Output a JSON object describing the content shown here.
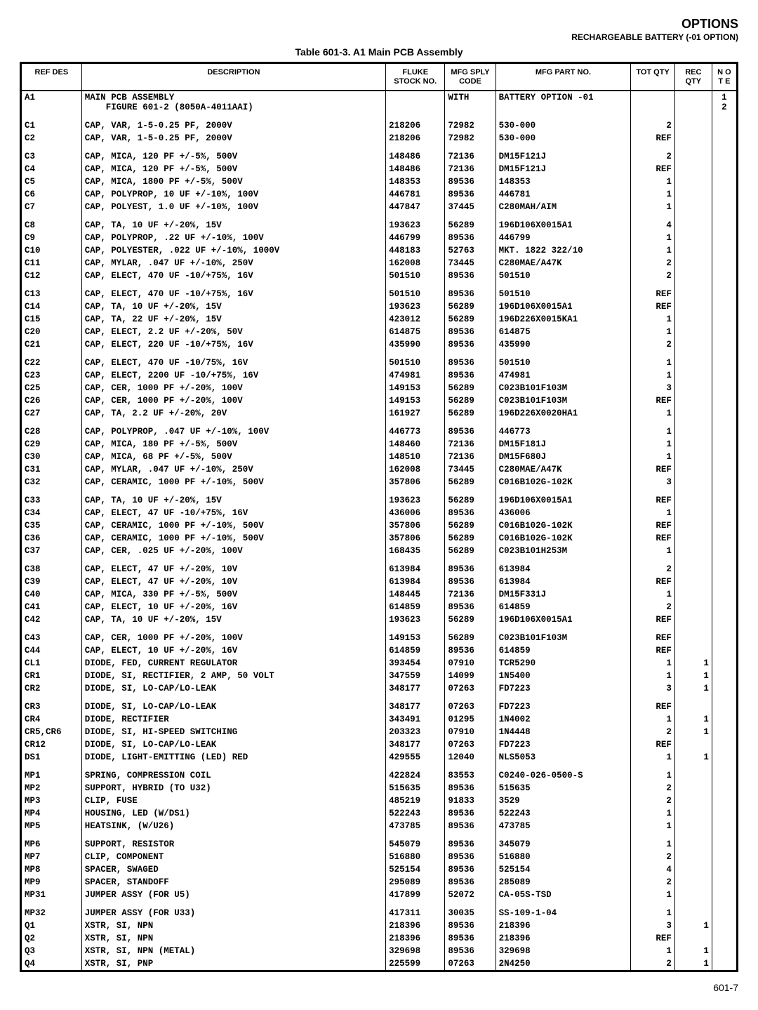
{
  "header": {
    "options": "OPTIONS",
    "subtitle": "RECHARGEABLE BATTERY (-01 OPTION)",
    "table_title": "Table 601-3. A1 Main PCB Assembly"
  },
  "columns": {
    "ref": "REF\nDES",
    "desc": "DESCRIPTION",
    "fluke": "FLUKE\nSTOCK\nNO.",
    "sply": "MFG\nSPLY\nCODE",
    "part": "MFG PART NO.",
    "tot": "TOT\nQTY",
    "rec": "REC\nQTY",
    "note": "N\nO\nT\nE"
  },
  "groups": [
    {
      "rows": [
        {
          "ref": "A1",
          "desc": "MAIN PCB ASSEMBLY\n    FIGURE 601-2 (8050A-4011AAI)",
          "fluke": "",
          "sply": "WITH",
          "part": "BATTERY OPTION -01",
          "tot": "",
          "rec": "",
          "note": "1\n2"
        }
      ]
    },
    {
      "rows": [
        {
          "ref": "C1",
          "desc": "CAP, VAR, 1-5-0.25 PF, 2000V",
          "fluke": "218206",
          "sply": "72982",
          "part": "530-000",
          "tot": "2",
          "rec": "",
          "note": ""
        },
        {
          "ref": "C2",
          "desc": "CAP, VAR, 1-5-0.25 PF, 2000V",
          "fluke": "218206",
          "sply": "72982",
          "part": "530-000",
          "tot": "REF",
          "rec": "",
          "note": ""
        }
      ]
    },
    {
      "rows": [
        {
          "ref": "C3",
          "desc": "CAP, MICA, 120 PF +/-5%, 500V",
          "fluke": "148486",
          "sply": "72136",
          "part": "DM15F121J",
          "tot": "2",
          "rec": "",
          "note": ""
        },
        {
          "ref": "C4",
          "desc": "CAP, MICA, 120 PF +/-5%, 500V",
          "fluke": "148486",
          "sply": "72136",
          "part": "DM15F121J",
          "tot": "REF",
          "rec": "",
          "note": ""
        },
        {
          "ref": "C5",
          "desc": "CAP, MICA, 1800 PF +/-5%, 500V",
          "fluke": "148353",
          "sply": "89536",
          "part": "148353",
          "tot": "1",
          "rec": "",
          "note": ""
        },
        {
          "ref": "C6",
          "desc": "CAP, POLYPROP, 10 UF +/-10%, 100V",
          "fluke": "446781",
          "sply": "89536",
          "part": "446781",
          "tot": "1",
          "rec": "",
          "note": ""
        },
        {
          "ref": "C7",
          "desc": "CAP, POLYEST, 1.0 UF +/-10%, 100V",
          "fluke": "447847",
          "sply": "37445",
          "part": "C280MAH/AIM",
          "tot": "1",
          "rec": "",
          "note": ""
        }
      ]
    },
    {
      "rows": [
        {
          "ref": "C8",
          "desc": "CAP, TA, 10 UF +/-20%, 15V",
          "fluke": "193623",
          "sply": "56289",
          "part": "196D106X0015A1",
          "tot": "4",
          "rec": "",
          "note": ""
        },
        {
          "ref": "C9",
          "desc": "CAP, POLYPROP, .22 UF +/-10%, 100V",
          "fluke": "446799",
          "sply": "89536",
          "part": "446799",
          "tot": "1",
          "rec": "",
          "note": ""
        },
        {
          "ref": "C10",
          "desc": "CAP, POLYESTER, .022 UF +/-10%, 1000V",
          "fluke": "448183",
          "sply": "52763",
          "part": "MKT. 1822 322/10",
          "tot": "1",
          "rec": "",
          "note": ""
        },
        {
          "ref": "C11",
          "desc": "CAP, MYLAR, .047 UF +/-10%, 250V",
          "fluke": "162008",
          "sply": "73445",
          "part": "C280MAE/A47K",
          "tot": "2",
          "rec": "",
          "note": ""
        },
        {
          "ref": "C12",
          "desc": "CAP, ELECT, 470 UF -10/+75%, 16V",
          "fluke": "501510",
          "sply": "89536",
          "part": "501510",
          "tot": "2",
          "rec": "",
          "note": ""
        }
      ]
    },
    {
      "rows": [
        {
          "ref": "C13",
          "desc": "CAP, ELECT, 470 UF -10/+75%, 16V",
          "fluke": "501510",
          "sply": "89536",
          "part": "501510",
          "tot": "REF",
          "rec": "",
          "note": ""
        },
        {
          "ref": "C14",
          "desc": "CAP, TA, 10 UF +/-20%, 15V",
          "fluke": "193623",
          "sply": "56289",
          "part": "196D106X0015A1",
          "tot": "REF",
          "rec": "",
          "note": ""
        },
        {
          "ref": "C15",
          "desc": "CAP, TA, 22 UF +/-20%, 15V",
          "fluke": "423012",
          "sply": "56289",
          "part": "196D226X0015KA1",
          "tot": "1",
          "rec": "",
          "note": ""
        },
        {
          "ref": "C20",
          "desc": "CAP, ELECT, 2.2 UF +/-20%, 50V",
          "fluke": "614875",
          "sply": "89536",
          "part": "614875",
          "tot": "1",
          "rec": "",
          "note": ""
        },
        {
          "ref": "C21",
          "desc": "CAP, ELECT, 220 UF -10/+75%, 16V",
          "fluke": "435990",
          "sply": "89536",
          "part": "435990",
          "tot": "2",
          "rec": "",
          "note": ""
        }
      ]
    },
    {
      "rows": [
        {
          "ref": "C22",
          "desc": "CAP, ELECT, 470 UF -10/75%, 16V",
          "fluke": "501510",
          "sply": "89536",
          "part": "501510",
          "tot": "1",
          "rec": "",
          "note": ""
        },
        {
          "ref": "C23",
          "desc": "CAP, ELECT, 2200 UF -10/+75%, 16V",
          "fluke": "474981",
          "sply": "89536",
          "part": "474981",
          "tot": "1",
          "rec": "",
          "note": ""
        },
        {
          "ref": "C25",
          "desc": "CAP, CER, 1000 PF +/-20%, 100V",
          "fluke": "149153",
          "sply": "56289",
          "part": "C023B101F103M",
          "tot": "3",
          "rec": "",
          "note": ""
        },
        {
          "ref": "C26",
          "desc": "CAP, CER, 1000 PF +/-20%, 100V",
          "fluke": "149153",
          "sply": "56289",
          "part": "C023B101F103M",
          "tot": "REF",
          "rec": "",
          "note": ""
        },
        {
          "ref": "C27",
          "desc": "CAP, TA, 2.2 UF +/-20%, 20V",
          "fluke": "161927",
          "sply": "56289",
          "part": "196D226X0020HA1",
          "tot": "1",
          "rec": "",
          "note": ""
        }
      ]
    },
    {
      "rows": [
        {
          "ref": "C28",
          "desc": "CAP, POLYPROP, .047 UF +/-10%, 100V",
          "fluke": "446773",
          "sply": "89536",
          "part": "446773",
          "tot": "1",
          "rec": "",
          "note": ""
        },
        {
          "ref": "C29",
          "desc": "CAP, MICA, 180 PF +/-5%, 500V",
          "fluke": "148460",
          "sply": "72136",
          "part": "DM15F181J",
          "tot": "1",
          "rec": "",
          "note": ""
        },
        {
          "ref": "C30",
          "desc": "CAP, MICA, 68 PF +/-5%, 500V",
          "fluke": "148510",
          "sply": "72136",
          "part": "DM15F680J",
          "tot": "1",
          "rec": "",
          "note": ""
        },
        {
          "ref": "C31",
          "desc": "CAP, MYLAR, .047 UF +/-10%, 250V",
          "fluke": "162008",
          "sply": "73445",
          "part": "C280MAE/A47K",
          "tot": "REF",
          "rec": "",
          "note": ""
        },
        {
          "ref": "C32",
          "desc": "CAP, CERAMIC, 1000 PF +/-10%, 500V",
          "fluke": "357806",
          "sply": "56289",
          "part": "C016B102G-102K",
          "tot": "3",
          "rec": "",
          "note": ""
        }
      ]
    },
    {
      "rows": [
        {
          "ref": "C33",
          "desc": "CAP, TA, 10 UF +/-20%, 15V",
          "fluke": "193623",
          "sply": "56289",
          "part": "196D106X0015A1",
          "tot": "REF",
          "rec": "",
          "note": ""
        },
        {
          "ref": "C34",
          "desc": "CAP, ELECT, 47 UF -10/+75%, 16V",
          "fluke": "436006",
          "sply": "89536",
          "part": "436006",
          "tot": "1",
          "rec": "",
          "note": ""
        },
        {
          "ref": "C35",
          "desc": "CAP, CERAMIC, 1000 PF +/-10%, 500V",
          "fluke": "357806",
          "sply": "56289",
          "part": "C016B102G-102K",
          "tot": "REF",
          "rec": "",
          "note": ""
        },
        {
          "ref": "C36",
          "desc": "CAP, CERAMIC, 1000 PF +/-10%, 500V",
          "fluke": "357806",
          "sply": "56289",
          "part": "C016B102G-102K",
          "tot": "REF",
          "rec": "",
          "note": ""
        },
        {
          "ref": "C37",
          "desc": "CAP, CER, .025 UF +/-20%, 100V",
          "fluke": "168435",
          "sply": "56289",
          "part": "C023B101H253M",
          "tot": "1",
          "rec": "",
          "note": ""
        }
      ]
    },
    {
      "rows": [
        {
          "ref": "C38",
          "desc": "CAP, ELECT, 47 UF +/-20%, 10V",
          "fluke": "613984",
          "sply": "89536",
          "part": "613984",
          "tot": "2",
          "rec": "",
          "note": ""
        },
        {
          "ref": "C39",
          "desc": "CAP, ELECT, 47 UF +/-20%, 10V",
          "fluke": "613984",
          "sply": "89536",
          "part": "613984",
          "tot": "REF",
          "rec": "",
          "note": ""
        },
        {
          "ref": "C40",
          "desc": "CAP, MICA, 330 PF +/-5%, 500V",
          "fluke": "148445",
          "sply": "72136",
          "part": "DM15F331J",
          "tot": "1",
          "rec": "",
          "note": ""
        },
        {
          "ref": "C41",
          "desc": "CAP, ELECT, 10 UF +/-20%, 16V",
          "fluke": "614859",
          "sply": "89536",
          "part": "614859",
          "tot": "2",
          "rec": "",
          "note": ""
        },
        {
          "ref": "C42",
          "desc": "CAP, TA, 10 UF +/-20%, 15V",
          "fluke": "193623",
          "sply": "56289",
          "part": "196D106X0015A1",
          "tot": "REF",
          "rec": "",
          "note": ""
        }
      ]
    },
    {
      "rows": [
        {
          "ref": "C43",
          "desc": "CAP, CER, 1000 PF +/-20%, 100V",
          "fluke": "149153",
          "sply": "56289",
          "part": "C023B101F103M",
          "tot": "REF",
          "rec": "",
          "note": ""
        },
        {
          "ref": "C44",
          "desc": "CAP, ELECT, 10 UF +/-20%, 16V",
          "fluke": "614859",
          "sply": "89536",
          "part": "614859",
          "tot": "REF",
          "rec": "",
          "note": ""
        },
        {
          "ref": "CL1",
          "desc": "DIODE, FED, CURRENT REGULATOR",
          "fluke": "393454",
          "sply": "07910",
          "part": "TCR5290",
          "tot": "1",
          "rec": "1",
          "note": ""
        },
        {
          "ref": "CR1",
          "desc": "DIODE, SI, RECTIFIER, 2 AMP, 50 VOLT",
          "fluke": "347559",
          "sply": "14099",
          "part": "1N5400",
          "tot": "1",
          "rec": "1",
          "note": ""
        },
        {
          "ref": "CR2",
          "desc": "DIODE, SI, LO-CAP/LO-LEAK",
          "fluke": "348177",
          "sply": "07263",
          "part": "FD7223",
          "tot": "3",
          "rec": "1",
          "note": ""
        }
      ]
    },
    {
      "rows": [
        {
          "ref": "CR3",
          "desc": "DIODE, SI, LO-CAP/LO-LEAK",
          "fluke": "348177",
          "sply": "07263",
          "part": "FD7223",
          "tot": "REF",
          "rec": "",
          "note": ""
        },
        {
          "ref": "CR4",
          "desc": "DIODE, RECTIFIER",
          "fluke": "343491",
          "sply": "01295",
          "part": "1N4002",
          "tot": "1",
          "rec": "1",
          "note": ""
        },
        {
          "ref": "CR5,CR6",
          "desc": "DIODE, SI, HI-SPEED SWITCHING",
          "fluke": "203323",
          "sply": "07910",
          "part": "1N4448",
          "tot": "2",
          "rec": "1",
          "note": ""
        },
        {
          "ref": "CR12",
          "desc": "DIODE, SI, LO-CAP/LO-LEAK",
          "fluke": "348177",
          "sply": "07263",
          "part": "FD7223",
          "tot": "REF",
          "rec": "",
          "note": ""
        },
        {
          "ref": "DS1",
          "desc": "DIODE, LIGHT-EMITTING (LED) RED",
          "fluke": "429555",
          "sply": "12040",
          "part": "NLS5053",
          "tot": "1",
          "rec": "1",
          "note": ""
        }
      ]
    },
    {
      "rows": [
        {
          "ref": "MP1",
          "desc": "SPRING, COMPRESSION COIL",
          "fluke": "422824",
          "sply": "83553",
          "part": "C0240-026-0500-S",
          "tot": "1",
          "rec": "",
          "note": ""
        },
        {
          "ref": "MP2",
          "desc": "SUPPORT, HYBRID (TO U32)",
          "fluke": "515635",
          "sply": "89536",
          "part": "515635",
          "tot": "2",
          "rec": "",
          "note": ""
        },
        {
          "ref": "MP3",
          "desc": "CLIP, FUSE",
          "fluke": "485219",
          "sply": "91833",
          "part": "3529",
          "tot": "2",
          "rec": "",
          "note": ""
        },
        {
          "ref": "MP4",
          "desc": "HOUSING, LED (W/DS1)",
          "fluke": "522243",
          "sply": "89536",
          "part": "522243",
          "tot": "1",
          "rec": "",
          "note": ""
        },
        {
          "ref": "MP5",
          "desc": "HEATSINK, (W/U26)",
          "fluke": "473785",
          "sply": "89536",
          "part": "473785",
          "tot": "1",
          "rec": "",
          "note": ""
        }
      ]
    },
    {
      "rows": [
        {
          "ref": "MP6",
          "desc": "SUPPORT, RESISTOR",
          "fluke": "545079",
          "sply": "89536",
          "part": "345079",
          "tot": "1",
          "rec": "",
          "note": ""
        },
        {
          "ref": "MP7",
          "desc": "CLIP, COMPONENT",
          "fluke": "516880",
          "sply": "89536",
          "part": "516880",
          "tot": "2",
          "rec": "",
          "note": ""
        },
        {
          "ref": "MP8",
          "desc": "SPACER, SWAGED",
          "fluke": "525154",
          "sply": "89536",
          "part": "525154",
          "tot": "4",
          "rec": "",
          "note": ""
        },
        {
          "ref": "MP9",
          "desc": "SPACER, STANDOFF",
          "fluke": "295089",
          "sply": "89536",
          "part": "285089",
          "tot": "2",
          "rec": "",
          "note": ""
        },
        {
          "ref": "MP31",
          "desc": "JUMPER ASSY (FOR U5)",
          "fluke": "417899",
          "sply": "52072",
          "part": "CA-05S-TSD",
          "tot": "1",
          "rec": "",
          "note": ""
        }
      ]
    },
    {
      "rows": [
        {
          "ref": "MP32",
          "desc": "JUMPER ASSY (FOR U33)",
          "fluke": "417311",
          "sply": "30035",
          "part": "SS-109-1-04",
          "tot": "1",
          "rec": "",
          "note": ""
        },
        {
          "ref": "Q1",
          "desc": "XSTR, SI, NPN",
          "fluke": "218396",
          "sply": "89536",
          "part": "218396",
          "tot": "3",
          "rec": "1",
          "note": ""
        },
        {
          "ref": "Q2",
          "desc": "XSTR, SI, NPN",
          "fluke": "218396",
          "sply": "89536",
          "part": "218396",
          "tot": "REF",
          "rec": "",
          "note": ""
        },
        {
          "ref": "Q3",
          "desc": "XSTR, SI, NPN (METAL)",
          "fluke": "329698",
          "sply": "89536",
          "part": "329698",
          "tot": "1",
          "rec": "1",
          "note": ""
        },
        {
          "ref": "Q4",
          "desc": "XSTR, SI, PNP",
          "fluke": "225599",
          "sply": "07263",
          "part": "2N4250",
          "tot": "2",
          "rec": "1",
          "note": ""
        }
      ]
    }
  ],
  "footer_page": "601-7"
}
